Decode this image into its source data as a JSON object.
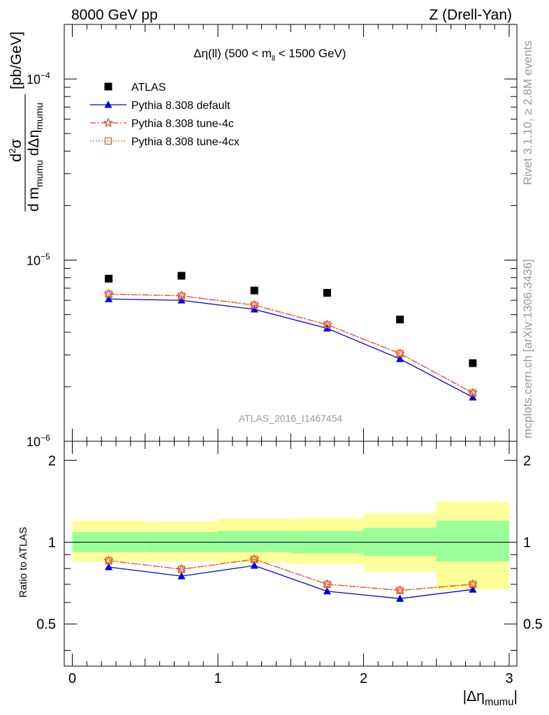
{
  "header": {
    "left": "8000 GeV pp",
    "right": "Z (Drell-Yan)"
  },
  "side_labels": {
    "top": "Rivet 3.1.10, ≥ 2.8M events",
    "bottom": "mcplots.cern.ch [arXiv:1306.3436]"
  },
  "plot_title": {
    "main": "Δη(ll) (500 < m",
    "sub": "ll",
    "tail": " < 1500 GeV)"
  },
  "watermark": "ATLAS_2016_I1467454",
  "colors": {
    "atlas": "#000000",
    "default": "#0000dd",
    "tune4c": "#e8392b",
    "tune4cx": "#d46a2a",
    "band_inner": "#99ff99",
    "band_outer": "#ffff99"
  },
  "chart_data": [
    {
      "type": "scatter",
      "yscale": "log",
      "ylim": [
        1e-06,
        0.0002
      ],
      "xlim": [
        -0.1,
        3.05
      ],
      "ylabel": {
        "prefix": "d",
        "sup": "2",
        "sym": "σ",
        "denom_d1": "d m",
        "denom_sub1": "mumu",
        "denom_d2": " dΔη",
        "denom_sub2": "mumu",
        "unit": "[pb/GeV]"
      },
      "yticks": [
        {
          "mant": "10",
          "exp": "−6"
        },
        {
          "mant": "10",
          "exp": "−5"
        },
        {
          "mant": "10",
          "exp": "−4"
        }
      ],
      "x": [
        0.25,
        0.75,
        1.25,
        1.75,
        2.25,
        2.75
      ],
      "series": [
        {
          "name": "ATLAS",
          "values": [
            7.9e-06,
            8.2e-06,
            6.8e-06,
            6.6e-06,
            4.7e-06,
            2.7e-06
          ]
        },
        {
          "name": "Pythia 8.308 default",
          "values": [
            6.1e-06,
            6e-06,
            5.35e-06,
            4.2e-06,
            2.85e-06,
            1.75e-06
          ]
        },
        {
          "name": "Pythia 8.308 tune-4c",
          "values": [
            6.5e-06,
            6.35e-06,
            5.65e-06,
            4.4e-06,
            3.05e-06,
            1.85e-06
          ]
        },
        {
          "name": "Pythia 8.308 tune-4cx",
          "values": [
            6.5e-06,
            6.35e-06,
            5.65e-06,
            4.4e-06,
            3.05e-06,
            1.85e-06
          ]
        }
      ]
    },
    {
      "type": "line",
      "ylabel": "Ratio to ATLAS",
      "ylim": [
        0.35,
        2.35
      ],
      "yticks": [
        "0.5",
        "1",
        "2"
      ],
      "xticks": [
        "0",
        "1",
        "2",
        "3"
      ],
      "xlabel": {
        "main": "|Δη",
        "sub": "mumu",
        "tail": "|"
      },
      "bins": [
        [
          0.0,
          0.5
        ],
        [
          0.5,
          1.0
        ],
        [
          1.0,
          1.5
        ],
        [
          1.5,
          2.0
        ],
        [
          2.0,
          2.5
        ],
        [
          2.5,
          3.0
        ]
      ],
      "band_inner": [
        [
          0.92,
          1.09
        ],
        [
          0.92,
          1.09
        ],
        [
          0.92,
          1.1
        ],
        [
          0.91,
          1.1
        ],
        [
          0.89,
          1.13
        ],
        [
          0.85,
          1.2
        ]
      ],
      "band_outer": [
        [
          0.85,
          1.2
        ],
        [
          0.85,
          1.19
        ],
        [
          0.84,
          1.22
        ],
        [
          0.83,
          1.23
        ],
        [
          0.78,
          1.28
        ],
        [
          0.67,
          1.41
        ]
      ],
      "x": [
        0.25,
        0.75,
        1.25,
        1.75,
        2.25,
        2.75
      ],
      "series": [
        {
          "name": "Pythia 8.308 default",
          "values": [
            0.81,
            0.75,
            0.82,
            0.66,
            0.62,
            0.67
          ]
        },
        {
          "name": "Pythia 8.308 tune-4c",
          "values": [
            0.855,
            0.795,
            0.865,
            0.7,
            0.665,
            0.7
          ]
        },
        {
          "name": "Pythia 8.308 tune-4cx",
          "values": [
            0.855,
            0.795,
            0.865,
            0.7,
            0.665,
            0.7
          ]
        }
      ]
    }
  ]
}
